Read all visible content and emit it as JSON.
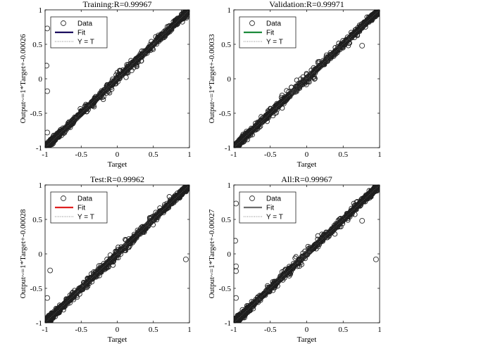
{
  "chart_data": [
    {
      "type": "scatter",
      "title": "Training:R=0.99967",
      "xlabel": "Target",
      "ylabel": "Output~=1*Target+-0.00026",
      "xlim": [
        -1,
        1
      ],
      "ylim": [
        -1,
        1
      ],
      "xticks": [
        "-1",
        "-0.5",
        "0",
        "0.5",
        "1"
      ],
      "yticks": [
        "-1",
        "-0.5",
        "0",
        "0.5",
        "1"
      ],
      "fit": {
        "slope": 1,
        "intercept": -0.00026,
        "color": "#1a0d5e"
      },
      "legend": [
        "Data",
        "Fit",
        "Y = T"
      ],
      "outliers": [
        [
          -0.97,
          0.73
        ],
        [
          -0.98,
          0.19
        ],
        [
          -0.97,
          -0.18
        ],
        [
          -0.97,
          -0.78
        ]
      ]
    },
    {
      "type": "scatter",
      "title": "Validation:R=0.99971",
      "xlabel": "Target",
      "ylabel": "Output~=1*Target+-0.00033",
      "xlim": [
        -1,
        1
      ],
      "ylim": [
        -1,
        1
      ],
      "xticks": [
        "-1",
        "-0.5",
        "0",
        "0.5",
        "1"
      ],
      "yticks": [
        "-1",
        "-0.5",
        "0",
        "0.5",
        "1"
      ],
      "fit": {
        "slope": 1,
        "intercept": -0.00033,
        "color": "#1b8a3a"
      },
      "legend": [
        "Data",
        "Fit",
        "Y = T"
      ],
      "outliers": [
        [
          0.76,
          0.48
        ]
      ]
    },
    {
      "type": "scatter",
      "title": "Test:R=0.99962",
      "xlabel": "Target",
      "ylabel": "Output~=1*Target+-0.00028",
      "xlim": [
        -1,
        1
      ],
      "ylim": [
        -1,
        1
      ],
      "xticks": [
        "-1",
        "-0.5",
        "0",
        "0.5",
        "1"
      ],
      "yticks": [
        "-1",
        "-0.5",
        "0",
        "0.5",
        "1"
      ],
      "fit": {
        "slope": 1,
        "intercept": -0.00028,
        "color": "#e02020"
      },
      "legend": [
        "Data",
        "Fit",
        "Y = T"
      ],
      "outliers": [
        [
          -0.93,
          -0.24
        ],
        [
          -0.97,
          -0.64
        ],
        [
          0.95,
          -0.08
        ]
      ]
    },
    {
      "type": "scatter",
      "title": "All:R=0.99967",
      "xlabel": "Target",
      "ylabel": "Output~=1*Target+-0.00027",
      "xlim": [
        -1,
        1
      ],
      "ylim": [
        -1,
        1
      ],
      "xticks": [
        "-1",
        "-0.5",
        "0",
        "0.5",
        "1"
      ],
      "yticks": [
        "-1",
        "-0.5",
        "0",
        "0.5",
        "1"
      ],
      "fit": {
        "slope": 1,
        "intercept": -0.00027,
        "color": "#6e6e6e"
      },
      "legend": [
        "Data",
        "Fit",
        "Y = T"
      ],
      "outliers": [
        [
          -0.97,
          0.73
        ],
        [
          -0.98,
          0.19
        ],
        [
          -0.97,
          -0.18
        ],
        [
          -0.97,
          -0.25
        ],
        [
          -0.97,
          -0.64
        ],
        [
          0.76,
          0.48
        ],
        [
          0.95,
          -0.08
        ]
      ]
    }
  ]
}
